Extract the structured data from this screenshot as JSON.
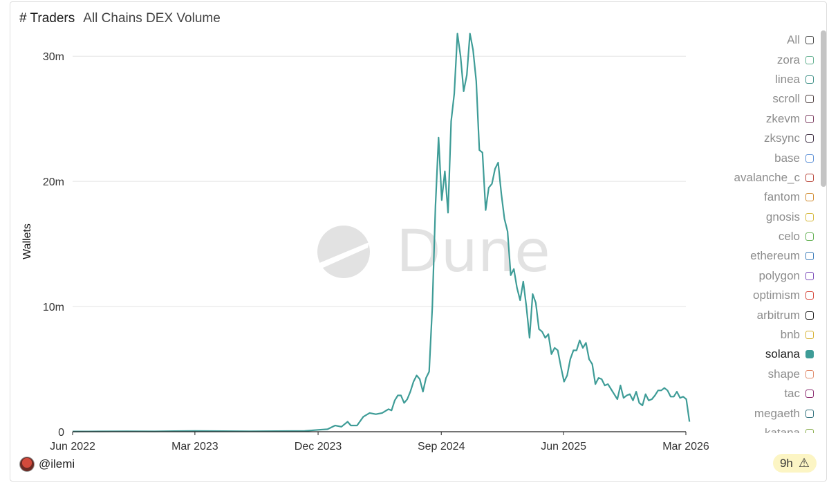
{
  "header": {
    "title": "# Traders",
    "subtitle": "All Chains DEX Volume"
  },
  "footer": {
    "author": "@ilemi",
    "age": "9h",
    "warning_icon": "warning-icon"
  },
  "watermark": "Dune",
  "legend": {
    "items": [
      {
        "label": "All",
        "color": "#444444",
        "active": false
      },
      {
        "label": "zora",
        "color": "#5fae8e",
        "active": false
      },
      {
        "label": "linea",
        "color": "#3d8f86",
        "active": false
      },
      {
        "label": "scroll",
        "color": "#4a3b3b",
        "active": false
      },
      {
        "label": "zkevm",
        "color": "#7a3a5e",
        "active": false
      },
      {
        "label": "zksync",
        "color": "#3a2a3e",
        "active": false
      },
      {
        "label": "base",
        "color": "#5b8fd6",
        "active": false
      },
      {
        "label": "avalanche_c",
        "color": "#b8463a",
        "active": false
      },
      {
        "label": "fantom",
        "color": "#d08a2e",
        "active": false
      },
      {
        "label": "gnosis",
        "color": "#d6b83a",
        "active": false
      },
      {
        "label": "celo",
        "color": "#5fae4e",
        "active": false
      },
      {
        "label": "ethereum",
        "color": "#3a7ab8",
        "active": false
      },
      {
        "label": "polygon",
        "color": "#7a4ab8",
        "active": false
      },
      {
        "label": "optimism",
        "color": "#d6463a",
        "active": false
      },
      {
        "label": "arbitrum",
        "color": "#1a1a1a",
        "active": false
      },
      {
        "label": "bnb",
        "color": "#d6b02e",
        "active": false
      },
      {
        "label": "solana",
        "color": "#3e9c97",
        "active": true
      },
      {
        "label": "shape",
        "color": "#e08a6a",
        "active": false
      },
      {
        "label": "tac",
        "color": "#8a2a6e",
        "active": false
      },
      {
        "label": "megaeth",
        "color": "#2e6e7a",
        "active": false
      },
      {
        "label": "katana",
        "color": "#8aae4e",
        "active": false
      }
    ]
  },
  "chart_data": {
    "type": "line",
    "ylabel": "Wallets",
    "xlabel": "",
    "ylim": [
      0,
      32000000
    ],
    "yticks": [
      0,
      10000000,
      20000000,
      30000000
    ],
    "ytick_labels": [
      "0",
      "10m",
      "20m",
      "30m"
    ],
    "xlim": [
      "2022-06-01",
      "2026-03-01"
    ],
    "xticks": [
      "2022-06-01",
      "2023-03-01",
      "2023-12-01",
      "2024-09-01",
      "2025-06-01",
      "2026-03-01"
    ],
    "xtick_labels": [
      "Jun 2022",
      "Mar 2023",
      "Dec 2023",
      "Sep 2024",
      "Jun 2025",
      "Mar 2026"
    ],
    "series": [
      {
        "name": "solana",
        "color": "#3e9c97",
        "points": [
          [
            "2022-06-01",
            20000
          ],
          [
            "2022-08-01",
            30000
          ],
          [
            "2022-10-01",
            40000
          ],
          [
            "2022-12-01",
            30000
          ],
          [
            "2023-01-15",
            50000
          ],
          [
            "2023-03-01",
            60000
          ],
          [
            "2023-05-01",
            50000
          ],
          [
            "2023-07-01",
            40000
          ],
          [
            "2023-09-01",
            50000
          ],
          [
            "2023-11-01",
            60000
          ],
          [
            "2023-12-01",
            150000
          ],
          [
            "2023-12-22",
            200000
          ],
          [
            "2024-01-08",
            500000
          ],
          [
            "2024-01-22",
            400000
          ],
          [
            "2024-02-05",
            800000
          ],
          [
            "2024-02-12",
            500000
          ],
          [
            "2024-02-26",
            500000
          ],
          [
            "2024-03-11",
            1200000
          ],
          [
            "2024-03-25",
            1500000
          ],
          [
            "2024-04-08",
            1400000
          ],
          [
            "2024-04-22",
            1500000
          ],
          [
            "2024-05-06",
            1800000
          ],
          [
            "2024-05-13",
            1700000
          ],
          [
            "2024-05-20",
            2500000
          ],
          [
            "2024-05-27",
            2900000
          ],
          [
            "2024-06-03",
            2900000
          ],
          [
            "2024-06-10",
            2300000
          ],
          [
            "2024-06-17",
            2600000
          ],
          [
            "2024-06-24",
            3200000
          ],
          [
            "2024-07-01",
            4000000
          ],
          [
            "2024-07-08",
            4500000
          ],
          [
            "2024-07-15",
            4200000
          ],
          [
            "2024-07-22",
            3200000
          ],
          [
            "2024-07-29",
            4300000
          ],
          [
            "2024-08-05",
            4800000
          ],
          [
            "2024-08-12",
            10000000
          ],
          [
            "2024-08-19",
            18000000
          ],
          [
            "2024-08-26",
            23500000
          ],
          [
            "2024-09-02",
            18500000
          ],
          [
            "2024-09-09",
            20800000
          ],
          [
            "2024-09-16",
            17500000
          ],
          [
            "2024-09-23",
            24800000
          ],
          [
            "2024-09-30",
            27000000
          ],
          [
            "2024-10-07",
            31800000
          ],
          [
            "2024-10-14",
            30000000
          ],
          [
            "2024-10-21",
            27200000
          ],
          [
            "2024-10-28",
            28500000
          ],
          [
            "2024-11-04",
            31800000
          ],
          [
            "2024-11-11",
            30500000
          ],
          [
            "2024-11-18",
            28000000
          ],
          [
            "2024-11-25",
            22500000
          ],
          [
            "2024-12-02",
            22300000
          ],
          [
            "2024-12-09",
            17700000
          ],
          [
            "2024-12-16",
            19500000
          ],
          [
            "2024-12-23",
            19800000
          ],
          [
            "2024-12-30",
            21000000
          ],
          [
            "2025-01-06",
            21500000
          ],
          [
            "2025-01-13",
            19000000
          ],
          [
            "2025-01-20",
            17000000
          ],
          [
            "2025-01-27",
            16000000
          ],
          [
            "2025-02-03",
            12500000
          ],
          [
            "2025-02-10",
            13000000
          ],
          [
            "2025-02-17",
            11500000
          ],
          [
            "2025-02-24",
            10500000
          ],
          [
            "2025-03-03",
            12000000
          ],
          [
            "2025-03-10",
            10000000
          ],
          [
            "2025-03-17",
            7500000
          ],
          [
            "2025-03-24",
            11000000
          ],
          [
            "2025-03-31",
            10300000
          ],
          [
            "2025-04-07",
            8200000
          ],
          [
            "2025-04-14",
            8000000
          ],
          [
            "2025-04-21",
            7500000
          ],
          [
            "2025-04-28",
            7800000
          ],
          [
            "2025-05-05",
            6200000
          ],
          [
            "2025-05-12",
            6700000
          ],
          [
            "2025-05-19",
            6500000
          ],
          [
            "2025-05-26",
            5200000
          ],
          [
            "2025-06-02",
            4000000
          ],
          [
            "2025-06-09",
            4500000
          ],
          [
            "2025-06-16",
            5800000
          ],
          [
            "2025-06-23",
            6500000
          ],
          [
            "2025-06-30",
            6500000
          ],
          [
            "2025-07-07",
            7300000
          ],
          [
            "2025-07-14",
            6700000
          ],
          [
            "2025-07-21",
            7100000
          ],
          [
            "2025-07-28",
            5800000
          ],
          [
            "2025-08-04",
            5400000
          ],
          [
            "2025-08-11",
            3800000
          ],
          [
            "2025-08-18",
            4300000
          ],
          [
            "2025-08-25",
            4200000
          ],
          [
            "2025-09-01",
            3700000
          ],
          [
            "2025-09-08",
            3800000
          ],
          [
            "2025-09-15",
            3400000
          ],
          [
            "2025-09-22",
            3000000
          ],
          [
            "2025-09-29",
            2600000
          ],
          [
            "2025-10-06",
            3700000
          ],
          [
            "2025-10-13",
            2700000
          ],
          [
            "2025-10-20",
            2900000
          ],
          [
            "2025-10-27",
            3000000
          ],
          [
            "2025-11-03",
            2500000
          ],
          [
            "2025-11-10",
            3200000
          ],
          [
            "2025-11-17",
            2300000
          ],
          [
            "2025-11-24",
            2100000
          ],
          [
            "2025-12-01",
            3000000
          ],
          [
            "2025-12-08",
            2500000
          ],
          [
            "2025-12-15",
            2600000
          ],
          [
            "2025-12-22",
            2900000
          ],
          [
            "2025-12-29",
            3300000
          ],
          [
            "2026-01-05",
            3300000
          ],
          [
            "2026-01-12",
            3500000
          ],
          [
            "2026-01-19",
            3300000
          ],
          [
            "2026-01-26",
            2800000
          ],
          [
            "2026-02-02",
            2800000
          ],
          [
            "2026-02-09",
            3200000
          ],
          [
            "2026-02-16",
            2700000
          ],
          [
            "2026-02-23",
            2800000
          ],
          [
            "2026-03-02",
            2600000
          ],
          [
            "2026-03-09",
            800000
          ]
        ]
      }
    ]
  }
}
